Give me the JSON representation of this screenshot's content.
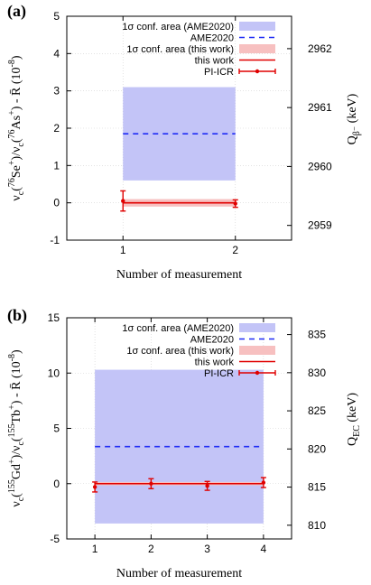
{
  "chart_data": [
    {
      "panel_label": "(a)",
      "type": "line",
      "x_ticks": [
        1,
        2
      ],
      "xlim": [
        0.5,
        2.5
      ],
      "xlabel": "Number of measurement",
      "ylabel_left": "ν<sub>c</sub>(<sup>76</sup>Se<sup>+</sup>)/ν<sub>c</sub>(<sup>76</sup>As<sup>+</sup>) - R̄ (10<sup>-8</sup>)",
      "ylabel_right": "Q<sub>β⁻</sub> (keV)",
      "ylim_left": [
        -1,
        5
      ],
      "y_ticks_left": [
        -1,
        0,
        1,
        2,
        3,
        4,
        5
      ],
      "ylim_right": [
        2958.75,
        2962.55
      ],
      "y_ticks_right": [
        2959,
        2960,
        2961,
        2962
      ],
      "legend": {
        "position": "top-right",
        "entries": [
          "1σ conf. area (AME2020)",
          "AME2020",
          "1σ conf. area (this work)",
          "this work",
          "PI-ICR"
        ]
      },
      "ame_band": {
        "x": [
          1,
          2
        ],
        "y_low": 0.6,
        "y_high": 3.1,
        "center": 1.85
      },
      "this_work_band": {
        "x": [
          1,
          2
        ],
        "y_low": -0.1,
        "y_high": 0.1,
        "center": 0.0
      },
      "series": [
        {
          "name": "PI-ICR",
          "x": [
            1,
            2
          ],
          "y": [
            0.05,
            -0.02
          ],
          "yerr": [
            0.27,
            0.1
          ]
        }
      ]
    },
    {
      "panel_label": "(b)",
      "type": "line",
      "x_ticks": [
        1,
        2,
        3,
        4
      ],
      "xlim": [
        0.5,
        4.5
      ],
      "xlabel": "Number of measurement",
      "ylabel_left": "ν<sub>c</sub>(<sup>155</sup>Gd<sup>+</sup>)/ν<sub>c</sub>(<sup>155</sup>Tb<sup>+</sup>) - R̄ (10<sup>-8</sup>)",
      "ylabel_right": "Q<sub>EC</sub> (keV)",
      "ylim_left": [
        -5,
        15
      ],
      "y_ticks_left": [
        -5,
        0,
        5,
        10,
        15
      ],
      "ylim_right": [
        808.2,
        837.2
      ],
      "y_ticks_right": [
        810,
        815,
        820,
        825,
        830,
        835
      ],
      "legend": {
        "position": "top-right",
        "entries": [
          "1σ conf. area (AME2020)",
          "AME2020",
          "1σ conf. area (this work)",
          "this work",
          "PI-ICR"
        ]
      },
      "ame_band": {
        "x": [
          1,
          4
        ],
        "y_low": -3.6,
        "y_high": 10.3,
        "center": 3.35
      },
      "this_work_band": {
        "x": [
          1,
          4
        ],
        "y_low": -0.15,
        "y_high": 0.15,
        "center": 0.0
      },
      "series": [
        {
          "name": "PI-ICR",
          "x": [
            1,
            2,
            3,
            4
          ],
          "y": [
            -0.3,
            0.0,
            -0.2,
            0.1
          ],
          "yerr": [
            0.45,
            0.45,
            0.4,
            0.45
          ]
        }
      ]
    }
  ],
  "colors": {
    "ame_band": "#c3c4f7",
    "ame_line": "#1f2bf5",
    "this_work_band": "#f7c0c0",
    "this_work_line": "#e00000",
    "pi_icr": "#e00000",
    "grid": "#d0d0d0",
    "axis": "#000000"
  }
}
